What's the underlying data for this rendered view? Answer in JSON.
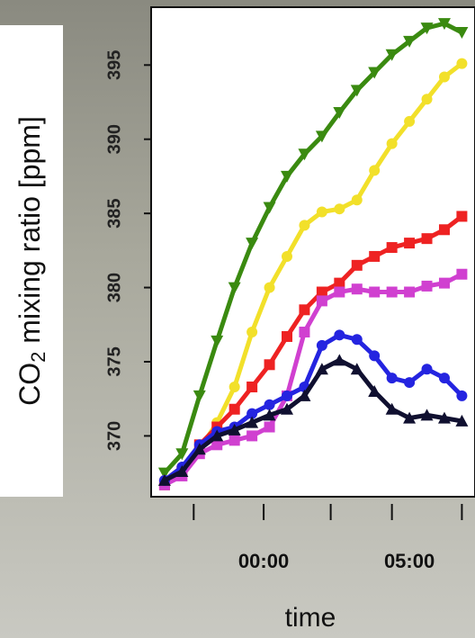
{
  "chart_data": {
    "type": "scatter",
    "xlabel": "time",
    "ylabel": [
      "CO",
      "2",
      " mixing ratio [ppm]"
    ],
    "xlim": [
      -3.86,
      7.25
    ],
    "ylim": [
      365.9,
      398.9
    ],
    "yticks": [
      370,
      375,
      380,
      385,
      390,
      395
    ],
    "xticks": [
      {
        "value": 0,
        "label": "00:00"
      },
      {
        "value": 5,
        "label": "05:00"
      }
    ],
    "xtick_marks": [
      -2.4,
      0,
      2.3,
      4.4,
      6.8
    ],
    "x": [
      -3.4,
      -2.8,
      -2.2,
      -1.6,
      -1.0,
      -0.4,
      0.2,
      0.8,
      1.4,
      2.0,
      2.6,
      3.2,
      3.8,
      4.4,
      5.0,
      5.6,
      6.2,
      6.8
    ],
    "series": [
      {
        "color": "#3a8a10",
        "marker": "triangle-down",
        "values": [
          367.5,
          368.8,
          372.7,
          376.4,
          380,
          383,
          385.4,
          387.5,
          389,
          390.2,
          391.8,
          393.3,
          394.5,
          395.7,
          396.6,
          397.5,
          397.8,
          397.2
        ]
      },
      {
        "color": "#f2e02a",
        "marker": "circle",
        "values": [
          367,
          367.9,
          369.1,
          370.9,
          373.3,
          377,
          380,
          382.1,
          384.2,
          385.1,
          385.3,
          385.9,
          387.9,
          389.7,
          391.2,
          392.7,
          394.2,
          395.1
        ]
      },
      {
        "color": "#ee2222",
        "marker": "square",
        "values": [
          366.7,
          367.6,
          369.4,
          370.6,
          371.8,
          373.3,
          374.8,
          376.7,
          378.5,
          379.7,
          380.3,
          381.5,
          382.1,
          382.7,
          383,
          383.3,
          383.9,
          384.8
        ]
      },
      {
        "color": "#d040d0",
        "marker": "square",
        "values": [
          366.7,
          367.3,
          368.8,
          369.4,
          369.7,
          370,
          370.6,
          372.7,
          377,
          379.1,
          379.7,
          379.9,
          379.7,
          379.7,
          379.7,
          380.1,
          380.3,
          380.9
        ]
      },
      {
        "color": "#2424e0",
        "marker": "circle",
        "values": [
          367,
          367.9,
          369.4,
          370.3,
          370.6,
          371.5,
          372.1,
          372.7,
          373.3,
          376.1,
          376.8,
          376.5,
          375.4,
          373.9,
          373.6,
          374.5,
          373.9,
          372.7
        ]
      },
      {
        "color": "#101030",
        "marker": "triangle-up",
        "values": [
          367,
          367.6,
          369.1,
          370,
          370.4,
          370.9,
          371.4,
          371.8,
          372.7,
          374.5,
          375.1,
          374.5,
          373,
          371.8,
          371.2,
          371.4,
          371.2,
          371
        ]
      }
    ]
  }
}
